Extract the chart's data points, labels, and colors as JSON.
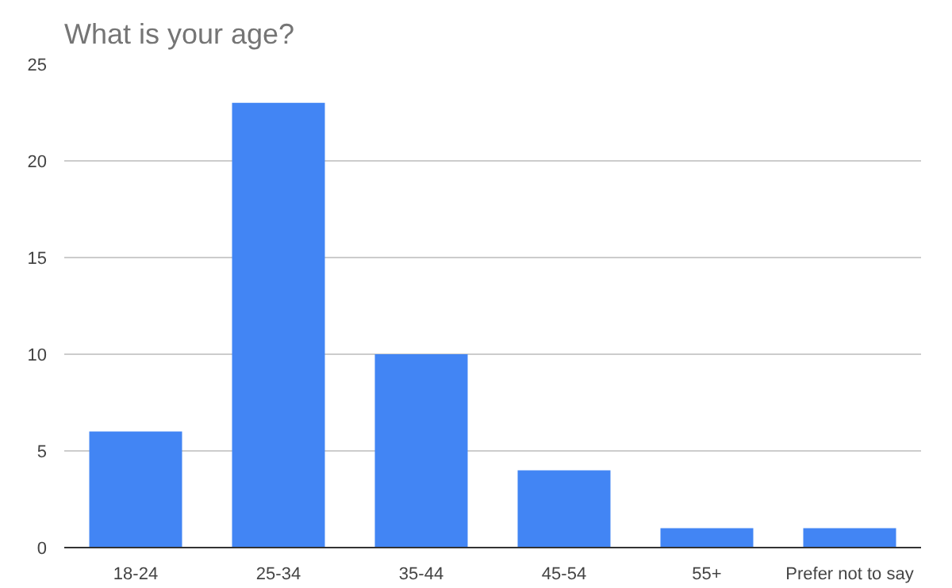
{
  "chart_data": {
    "type": "bar",
    "title": "What is your age?",
    "categories": [
      "18-24",
      "25-34",
      "35-44",
      "45-54",
      "55+",
      "Prefer not to say"
    ],
    "values": [
      6,
      23,
      10,
      4,
      1,
      1
    ],
    "color": "#4285f4",
    "ylim": [
      0,
      25
    ],
    "yticks": [
      0,
      5,
      10,
      15,
      20,
      25
    ],
    "grid": "y"
  }
}
